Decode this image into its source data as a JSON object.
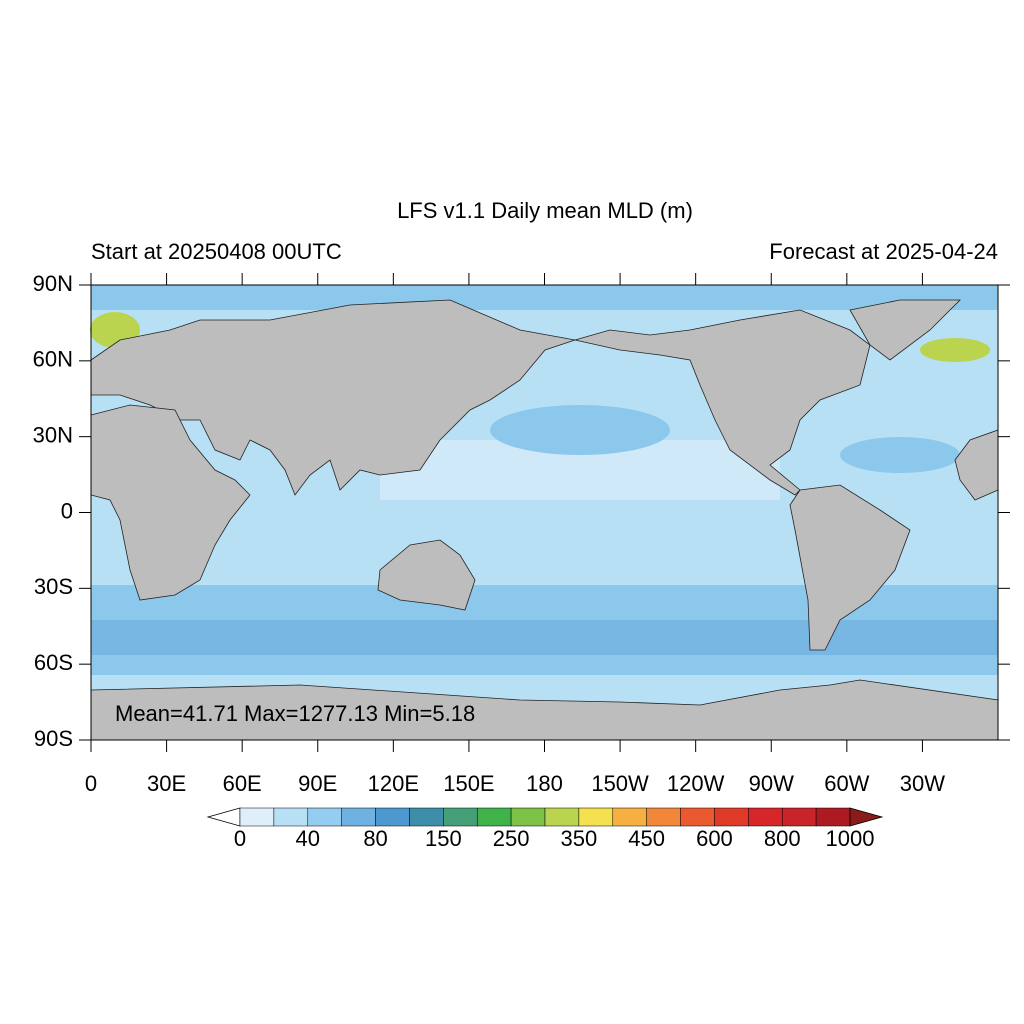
{
  "title": "LFS v1.1 Daily mean MLD (m)",
  "subtitle_left": "Start at 20250408 00UTC",
  "subtitle_right": "Forecast at 2025-04-24",
  "lat_labels": [
    "90N",
    "60N",
    "30N",
    "0",
    "30S",
    "60S",
    "90S"
  ],
  "lon_labels": [
    "0",
    "30E",
    "60E",
    "90E",
    "120E",
    "150E",
    "180",
    "150W",
    "120W",
    "90W",
    "60W",
    "30W"
  ],
  "stats": "Mean=41.71  Max=1277.13  Min=5.18",
  "colorbar": {
    "colors": [
      "#ffffff",
      "#deeffa",
      "#b8e0f5",
      "#94cdef",
      "#6fb1e0",
      "#4d98cf",
      "#3d8fa9",
      "#45a07a",
      "#3fb24a",
      "#7dc146",
      "#bad44f",
      "#f5e04f",
      "#f5b041",
      "#f2873a",
      "#ea5a2e",
      "#de3a27",
      "#d7262a",
      "#c9242a",
      "#ad1a22",
      "#8b1a1a"
    ],
    "labels": [
      0,
      40,
      80,
      150,
      250,
      350,
      450,
      600,
      800,
      1000
    ]
  }
}
